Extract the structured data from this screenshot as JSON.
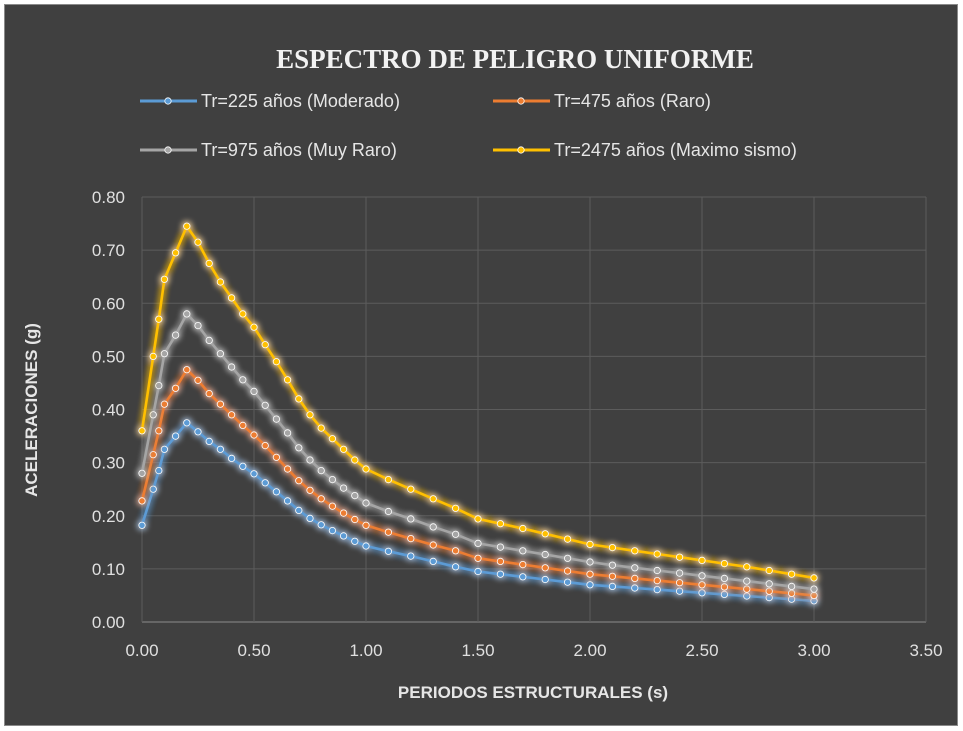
{
  "chart_data": {
    "type": "line",
    "title": "ESPECTRO DE PELIGRO UNIFORME",
    "xlabel": "PERIODOS ESTRUCTURALES (s)",
    "ylabel": "ACELERACIONES (g)",
    "xlim": [
      0,
      3.5
    ],
    "ylim": [
      0,
      0.8
    ],
    "x_ticks": [
      "0.00",
      "0.50",
      "1.00",
      "1.50",
      "2.00",
      "2.50",
      "3.00",
      "3.50"
    ],
    "y_ticks": [
      "0.00",
      "0.10",
      "0.20",
      "0.30",
      "0.40",
      "0.50",
      "0.60",
      "0.70",
      "0.80"
    ],
    "grid": true,
    "legend_position": "top",
    "x": [
      0.0,
      0.05,
      0.075,
      0.1,
      0.15,
      0.2,
      0.25,
      0.3,
      0.35,
      0.4,
      0.45,
      0.5,
      0.55,
      0.6,
      0.65,
      0.7,
      0.75,
      0.8,
      0.85,
      0.9,
      0.95,
      1.0,
      1.1,
      1.2,
      1.3,
      1.4,
      1.5,
      1.6,
      1.7,
      1.8,
      1.9,
      2.0,
      2.1,
      2.2,
      2.3,
      2.4,
      2.5,
      2.6,
      2.7,
      2.8,
      2.9,
      3.0
    ],
    "series": [
      {
        "name": "Tr=225 años (Moderado)",
        "color": "#5b9bd5",
        "values": [
          0.182,
          0.25,
          0.285,
          0.325,
          0.35,
          0.375,
          0.358,
          0.34,
          0.325,
          0.308,
          0.293,
          0.279,
          0.262,
          0.245,
          0.228,
          0.21,
          0.195,
          0.183,
          0.172,
          0.162,
          0.152,
          0.143,
          0.133,
          0.124,
          0.114,
          0.104,
          0.095,
          0.09,
          0.085,
          0.08,
          0.075,
          0.07,
          0.067,
          0.064,
          0.061,
          0.058,
          0.055,
          0.052,
          0.049,
          0.046,
          0.043,
          0.04
        ]
      },
      {
        "name": "Tr=475 años (Raro)",
        "color": "#ed7d31",
        "values": [
          0.228,
          0.315,
          0.36,
          0.41,
          0.44,
          0.475,
          0.455,
          0.43,
          0.41,
          0.39,
          0.37,
          0.352,
          0.332,
          0.31,
          0.288,
          0.266,
          0.248,
          0.232,
          0.218,
          0.205,
          0.193,
          0.182,
          0.169,
          0.157,
          0.145,
          0.134,
          0.12,
          0.114,
          0.108,
          0.102,
          0.096,
          0.09,
          0.086,
          0.082,
          0.078,
          0.074,
          0.07,
          0.066,
          0.062,
          0.058,
          0.054,
          0.05
        ]
      },
      {
        "name": "Tr=975 años (Muy Raro)",
        "color": "#a5a5a5",
        "values": [
          0.28,
          0.39,
          0.445,
          0.505,
          0.54,
          0.58,
          0.558,
          0.53,
          0.505,
          0.48,
          0.456,
          0.434,
          0.408,
          0.382,
          0.356,
          0.328,
          0.305,
          0.285,
          0.268,
          0.252,
          0.238,
          0.224,
          0.208,
          0.194,
          0.179,
          0.165,
          0.148,
          0.141,
          0.134,
          0.127,
          0.12,
          0.113,
          0.107,
          0.102,
          0.097,
          0.092,
          0.087,
          0.082,
          0.077,
          0.072,
          0.067,
          0.062
        ]
      },
      {
        "name": "Tr=2475 años (Maximo sismo)",
        "color": "#ffc000",
        "values": [
          0.36,
          0.5,
          0.57,
          0.645,
          0.695,
          0.745,
          0.715,
          0.675,
          0.64,
          0.61,
          0.58,
          0.555,
          0.522,
          0.49,
          0.456,
          0.42,
          0.39,
          0.365,
          0.345,
          0.325,
          0.305,
          0.288,
          0.268,
          0.25,
          0.232,
          0.214,
          0.194,
          0.185,
          0.176,
          0.166,
          0.156,
          0.146,
          0.14,
          0.134,
          0.128,
          0.122,
          0.116,
          0.11,
          0.104,
          0.097,
          0.09,
          0.083
        ]
      }
    ]
  }
}
